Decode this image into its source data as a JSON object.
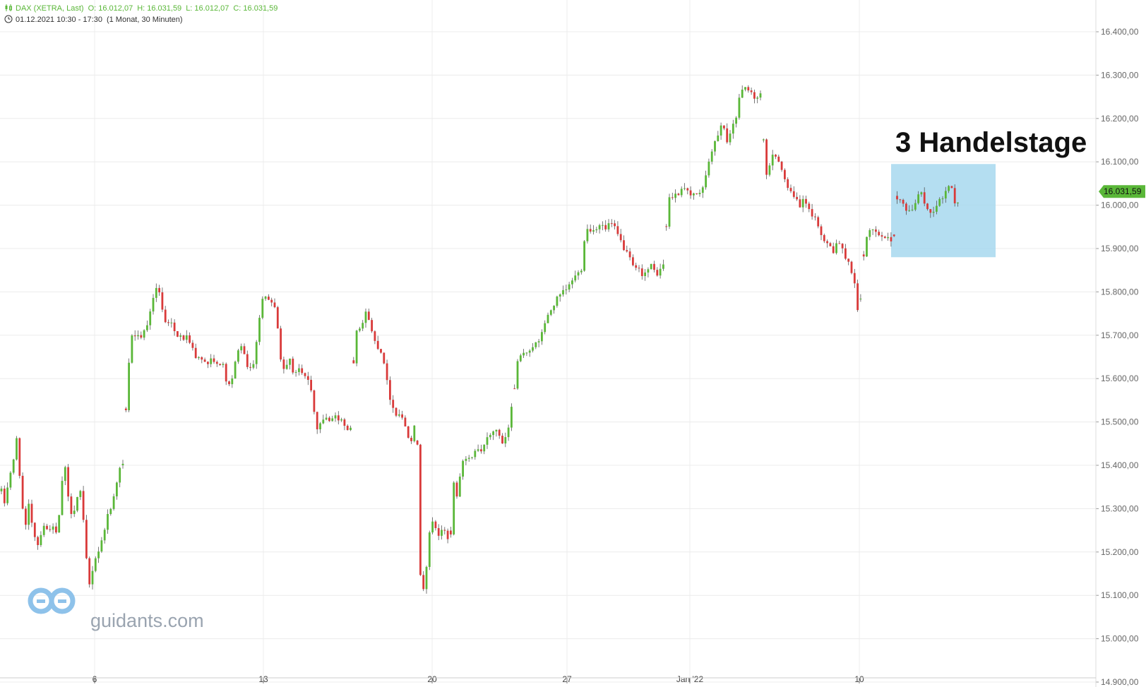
{
  "legend": {
    "instrument": "DAX (XETRA, Last)",
    "open": "O: 16.012,07",
    "high": "H: 16.031,59",
    "low": "L: 16.012,07",
    "close": "C: 16.031,59",
    "range": "01.12.2021 10:30 - 17:30",
    "period": "(1 Monat, 30 Minuten)",
    "icon": "candlestick-icon",
    "clock_icon": "clock-icon"
  },
  "watermark": {
    "text": "guidants.com",
    "icon": "guidants-logo"
  },
  "annotation": {
    "text": "3 Handelstage"
  },
  "colors": {
    "up": "#5ab738",
    "down": "#d93a3a",
    "wick": "#555555",
    "grid": "#ececec",
    "highlight": "#a7d8ef",
    "price_tag": "#5ab738",
    "axis_text": "#666666"
  },
  "chart_data": {
    "type": "candlestick",
    "interval": "30 Minuten",
    "yticks": [
      "16.400,00",
      "16.300,00",
      "16.200,00",
      "16.100,00",
      "16.000,00",
      "15.900,00",
      "15.800,00",
      "15.700,00",
      "15.600,00",
      "15.500,00",
      "15.400,00",
      "15.300,00",
      "15.200,00",
      "15.100,00",
      "15.000,00",
      "14.900,00"
    ],
    "ylim": [
      14900,
      16400
    ],
    "xticks": [
      "6",
      "13",
      "20",
      "27",
      "Jan '22",
      "10"
    ],
    "last_price": 16031.59,
    "last_price_label": "16.031,59",
    "highlight_window": {
      "from": "11.01.2022",
      "to": "13.01.2022",
      "y_low": 15880,
      "y_high": 16095
    },
    "anchors": [
      {
        "t": 0,
        "y": 15340
      },
      {
        "t": 5,
        "y": 15310
      },
      {
        "t": 11,
        "y": 15380
      },
      {
        "t": 16,
        "y": 15390
      },
      {
        "t": 21,
        "y": 15470
      },
      {
        "t": 27,
        "y": 15360
      },
      {
        "t": 33,
        "y": 15240
      },
      {
        "t": 39,
        "y": 15310
      },
      {
        "t": 45,
        "y": 15250
      },
      {
        "t": 53,
        "y": 15210
      },
      {
        "t": 58,
        "y": 15270
      },
      {
        "t": 64,
        "y": 15250
      },
      {
        "t": 71,
        "y": 15260
      },
      {
        "t": 77,
        "y": 15240
      },
      {
        "t": 84,
        "y": 15300
      },
      {
        "t": 88,
        "y": 15430
      },
      {
        "t": 92,
        "y": 15360
      },
      {
        "t": 97,
        "y": 15290
      },
      {
        "t": 103,
        "y": 15300
      },
      {
        "t": 108,
        "y": 15330
      },
      {
        "t": 113,
        "y": 15340
      },
      {
        "t": 119,
        "y": 15200
      },
      {
        "t": 125,
        "y": 15120
      },
      {
        "t": 131,
        "y": 15180
      },
      {
        "t": 137,
        "y": 15200
      },
      {
        "t": 143,
        "y": 15230
      },
      {
        "t": 149,
        "y": 15280
      },
      {
        "t": 155,
        "y": 15300
      },
      {
        "t": 160,
        "y": 15340
      },
      {
        "t": 167,
        "y": 15390
      },
      {
        "t": 173,
        "y": 15400
      },
      {
        "t": 177,
        "y": 15560
      },
      {
        "t": 183,
        "y": 15690
      },
      {
        "t": 190,
        "y": 15700
      },
      {
        "t": 197,
        "y": 15700
      },
      {
        "t": 204,
        "y": 15710
      },
      {
        "t": 211,
        "y": 15760
      },
      {
        "t": 218,
        "y": 15810
      },
      {
        "t": 224,
        "y": 15800
      },
      {
        "t": 230,
        "y": 15740
      },
      {
        "t": 236,
        "y": 15730
      },
      {
        "t": 243,
        "y": 15720
      },
      {
        "t": 250,
        "y": 15700
      },
      {
        "t": 256,
        "y": 15690
      },
      {
        "t": 263,
        "y": 15700
      },
      {
        "t": 270,
        "y": 15670
      },
      {
        "t": 276,
        "y": 15640
      },
      {
        "t": 282,
        "y": 15650
      },
      {
        "t": 290,
        "y": 15640
      },
      {
        "t": 298,
        "y": 15640
      },
      {
        "t": 306,
        "y": 15640
      },
      {
        "t": 314,
        "y": 15630
      },
      {
        "t": 320,
        "y": 15580
      },
      {
        "t": 326,
        "y": 15600
      },
      {
        "t": 333,
        "y": 15660
      },
      {
        "t": 340,
        "y": 15670
      },
      {
        "t": 346,
        "y": 15640
      },
      {
        "t": 352,
        "y": 15620
      },
      {
        "t": 358,
        "y": 15640
      },
      {
        "t": 364,
        "y": 15730
      },
      {
        "t": 370,
        "y": 15790
      },
      {
        "t": 376,
        "y": 15780
      },
      {
        "t": 382,
        "y": 15770
      },
      {
        "t": 388,
        "y": 15760
      },
      {
        "t": 392,
        "y": 15700
      },
      {
        "t": 397,
        "y": 15630
      },
      {
        "t": 402,
        "y": 15620
      },
      {
        "t": 408,
        "y": 15650
      },
      {
        "t": 414,
        "y": 15610
      },
      {
        "t": 421,
        "y": 15630
      },
      {
        "t": 428,
        "y": 15610
      },
      {
        "t": 434,
        "y": 15600
      },
      {
        "t": 440,
        "y": 15560
      },
      {
        "t": 446,
        "y": 15480
      },
      {
        "t": 452,
        "y": 15500
      },
      {
        "t": 458,
        "y": 15510
      },
      {
        "t": 464,
        "y": 15500
      },
      {
        "t": 470,
        "y": 15510
      },
      {
        "t": 476,
        "y": 15510
      },
      {
        "t": 482,
        "y": 15500
      },
      {
        "t": 488,
        "y": 15480
      },
      {
        "t": 496,
        "y": 15480
      },
      {
        "t": 500,
        "y": 15710
      },
      {
        "t": 506,
        "y": 15720
      },
      {
        "t": 512,
        "y": 15730
      },
      {
        "t": 518,
        "y": 15760
      },
      {
        "t": 524,
        "y": 15710
      },
      {
        "t": 530,
        "y": 15680
      },
      {
        "t": 536,
        "y": 15670
      },
      {
        "t": 542,
        "y": 15640
      },
      {
        "t": 547,
        "y": 15580
      },
      {
        "t": 553,
        "y": 15540
      },
      {
        "t": 558,
        "y": 15520
      },
      {
        "t": 564,
        "y": 15520
      },
      {
        "t": 570,
        "y": 15500
      },
      {
        "t": 576,
        "y": 15470
      },
      {
        "t": 582,
        "y": 15460
      },
      {
        "t": 588,
        "y": 15540
      },
      {
        "t": 593,
        "y": 15150
      },
      {
        "t": 599,
        "y": 15100
      },
      {
        "t": 605,
        "y": 15230
      },
      {
        "t": 612,
        "y": 15280
      },
      {
        "t": 618,
        "y": 15240
      },
      {
        "t": 625,
        "y": 15260
      },
      {
        "t": 631,
        "y": 15230
      },
      {
        "t": 636,
        "y": 15235
      },
      {
        "t": 640,
        "y": 15360
      },
      {
        "t": 646,
        "y": 15330
      },
      {
        "t": 652,
        "y": 15400
      },
      {
        "t": 658,
        "y": 15420
      },
      {
        "t": 664,
        "y": 15420
      },
      {
        "t": 670,
        "y": 15430
      },
      {
        "t": 676,
        "y": 15430
      },
      {
        "t": 682,
        "y": 15440
      },
      {
        "t": 688,
        "y": 15460
      },
      {
        "t": 694,
        "y": 15470
      },
      {
        "t": 700,
        "y": 15480
      },
      {
        "t": 706,
        "y": 15460
      },
      {
        "t": 712,
        "y": 15450
      },
      {
        "t": 718,
        "y": 15490
      },
      {
        "t": 724,
        "y": 15550
      },
      {
        "t": 728,
        "y": 15590
      },
      {
        "t": 731,
        "y": 15640
      },
      {
        "t": 737,
        "y": 15650
      },
      {
        "t": 743,
        "y": 15660
      },
      {
        "t": 749,
        "y": 15670
      },
      {
        "t": 755,
        "y": 15680
      },
      {
        "t": 761,
        "y": 15680
      },
      {
        "t": 767,
        "y": 15720
      },
      {
        "t": 773,
        "y": 15740
      },
      {
        "t": 779,
        "y": 15760
      },
      {
        "t": 785,
        "y": 15780
      },
      {
        "t": 791,
        "y": 15790
      },
      {
        "t": 797,
        "y": 15800
      },
      {
        "t": 803,
        "y": 15810
      },
      {
        "t": 809,
        "y": 15830
      },
      {
        "t": 815,
        "y": 15840
      },
      {
        "t": 821,
        "y": 15850
      },
      {
        "t": 825,
        "y": 15920
      },
      {
        "t": 831,
        "y": 15950
      },
      {
        "t": 837,
        "y": 15940
      },
      {
        "t": 843,
        "y": 15950
      },
      {
        "t": 849,
        "y": 15960
      },
      {
        "t": 855,
        "y": 15940
      },
      {
        "t": 861,
        "y": 15960
      },
      {
        "t": 867,
        "y": 15950
      },
      {
        "t": 873,
        "y": 15930
      },
      {
        "t": 879,
        "y": 15910
      },
      {
        "t": 885,
        "y": 15890
      },
      {
        "t": 891,
        "y": 15870
      },
      {
        "t": 897,
        "y": 15850
      },
      {
        "t": 903,
        "y": 15850
      },
      {
        "t": 909,
        "y": 15840
      },
      {
        "t": 915,
        "y": 15850
      },
      {
        "t": 921,
        "y": 15860
      },
      {
        "t": 927,
        "y": 15840
      },
      {
        "t": 933,
        "y": 15850
      },
      {
        "t": 939,
        "y": 15870
      },
      {
        "t": 944,
        "y": 16020
      },
      {
        "t": 950,
        "y": 16020
      },
      {
        "t": 956,
        "y": 16030
      },
      {
        "t": 962,
        "y": 16030
      },
      {
        "t": 968,
        "y": 16040
      },
      {
        "t": 974,
        "y": 16020
      },
      {
        "t": 980,
        "y": 16030
      },
      {
        "t": 986,
        "y": 16020
      },
      {
        "t": 992,
        "y": 16040
      },
      {
        "t": 998,
        "y": 16070
      },
      {
        "t": 1004,
        "y": 16110
      },
      {
        "t": 1010,
        "y": 16140
      },
      {
        "t": 1016,
        "y": 16170
      },
      {
        "t": 1022,
        "y": 16190
      },
      {
        "t": 1028,
        "y": 16140
      },
      {
        "t": 1034,
        "y": 16170
      },
      {
        "t": 1040,
        "y": 16200
      },
      {
        "t": 1046,
        "y": 16260
      },
      {
        "t": 1052,
        "y": 16270
      },
      {
        "t": 1058,
        "y": 16270
      },
      {
        "t": 1064,
        "y": 16260
      },
      {
        "t": 1070,
        "y": 16240
      },
      {
        "t": 1076,
        "y": 16260
      },
      {
        "t": 1082,
        "y": 16060
      },
      {
        "t": 1088,
        "y": 16090
      },
      {
        "t": 1094,
        "y": 16120
      },
      {
        "t": 1100,
        "y": 16110
      },
      {
        "t": 1106,
        "y": 16080
      },
      {
        "t": 1112,
        "y": 16050
      },
      {
        "t": 1118,
        "y": 16030
      },
      {
        "t": 1124,
        "y": 16020
      },
      {
        "t": 1130,
        "y": 15990
      },
      {
        "t": 1136,
        "y": 16010
      },
      {
        "t": 1142,
        "y": 15990
      },
      {
        "t": 1148,
        "y": 15980
      },
      {
        "t": 1154,
        "y": 15960
      },
      {
        "t": 1160,
        "y": 15930
      },
      {
        "t": 1166,
        "y": 15910
      },
      {
        "t": 1172,
        "y": 15920
      },
      {
        "t": 1178,
        "y": 15890
      },
      {
        "t": 1184,
        "y": 15920
      },
      {
        "t": 1190,
        "y": 15900
      },
      {
        "t": 1196,
        "y": 15880
      },
      {
        "t": 1202,
        "y": 15860
      },
      {
        "t": 1208,
        "y": 15820
      },
      {
        "t": 1213,
        "y": 15760
      },
      {
        "t": 1218,
        "y": 15790
      },
      {
        "t": 1222,
        "y": 15910
      },
      {
        "t": 1228,
        "y": 15950
      },
      {
        "t": 1234,
        "y": 15940
      },
      {
        "t": 1240,
        "y": 15930
      },
      {
        "t": 1246,
        "y": 15920
      },
      {
        "t": 1252,
        "y": 15930
      },
      {
        "t": 1258,
        "y": 15920
      },
      {
        "t": 1264,
        "y": 15930
      },
      {
        "t": 1269,
        "y": 16030
      },
      {
        "t": 1275,
        "y": 16010
      },
      {
        "t": 1281,
        "y": 15990
      },
      {
        "t": 1287,
        "y": 15980
      },
      {
        "t": 1293,
        "y": 16000
      },
      {
        "t": 1299,
        "y": 16030
      },
      {
        "t": 1305,
        "y": 16020
      },
      {
        "t": 1311,
        "y": 15990
      },
      {
        "t": 1317,
        "y": 15980
      },
      {
        "t": 1323,
        "y": 16000
      },
      {
        "t": 1329,
        "y": 16010
      },
      {
        "t": 1335,
        "y": 16020
      },
      {
        "t": 1341,
        "y": 16050
      },
      {
        "t": 1347,
        "y": 16030
      },
      {
        "t": 1353,
        "y": 15990
      },
      {
        "t": 1358,
        "y": 16031.59
      }
    ],
    "gaps": [
      176,
      499,
      592,
      639,
      730,
      943,
      1081,
      1221,
      1268
    ]
  }
}
